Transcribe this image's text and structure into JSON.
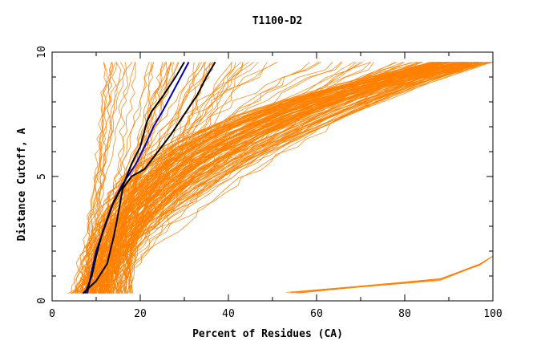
{
  "chart_data": {
    "type": "line",
    "title": "T1100-D2",
    "xlabel": "Percent of Residues (CA)",
    "ylabel": "Distance Cutoff, A",
    "xlim": [
      0,
      100
    ],
    "ylim": [
      0,
      10
    ],
    "x_ticks": [
      "0",
      "20",
      "40",
      "60",
      "80",
      "100"
    ],
    "y_ticks": [
      "0",
      "5",
      "10"
    ],
    "grid": false,
    "colors": {
      "models": "#ff8000",
      "highlight_black": "#000000",
      "highlight_blue": "#0000c8"
    },
    "series": [
      {
        "color": "#0000c8",
        "points": [
          [
            8,
            0.3
          ],
          [
            9,
            1.2
          ],
          [
            10,
            2
          ],
          [
            12,
            3
          ],
          [
            14,
            4
          ],
          [
            16,
            4.7
          ],
          [
            19,
            5.5
          ],
          [
            21,
            6.2
          ],
          [
            23,
            7
          ],
          [
            25,
            7.6
          ],
          [
            28,
            8.6
          ],
          [
            31,
            9.6
          ]
        ]
      },
      {
        "color": "#000000",
        "points": [
          [
            7.5,
            0.3
          ],
          [
            9,
            1
          ],
          [
            10,
            1.8
          ],
          [
            11.5,
            2.8
          ],
          [
            13.5,
            3.8
          ],
          [
            15,
            4.3
          ],
          [
            16,
            4.6
          ],
          [
            18,
            5.5
          ],
          [
            20,
            6.2
          ],
          [
            21.5,
            7.2
          ],
          [
            22.5,
            7.6
          ],
          [
            25,
            8.2
          ],
          [
            28,
            9
          ],
          [
            30,
            9.6
          ]
        ]
      },
      {
        "color": "#000000",
        "points": [
          [
            7,
            0.3
          ],
          [
            10,
            0.8
          ],
          [
            12.5,
            1.5
          ],
          [
            14,
            2.6
          ],
          [
            15,
            3.5
          ],
          [
            16,
            4.5
          ],
          [
            18,
            5
          ],
          [
            21,
            5.3
          ],
          [
            24,
            6
          ],
          [
            27,
            6.7
          ],
          [
            30,
            7.5
          ],
          [
            33,
            8.3
          ],
          [
            35,
            9
          ],
          [
            37,
            9.6
          ]
        ]
      }
    ],
    "annotations": []
  }
}
